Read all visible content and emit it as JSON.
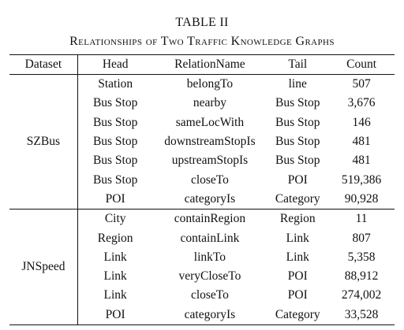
{
  "caption": {
    "number": "TABLE II",
    "title": "Relationships of Two Traffic Knowledge Graphs"
  },
  "table": {
    "headers": [
      "Dataset",
      "Head",
      "RelationName",
      "Tail",
      "Count"
    ],
    "groups": [
      {
        "dataset": "SZBus",
        "rows": [
          [
            "Station",
            "belongTo",
            "line",
            "507"
          ],
          [
            "Bus Stop",
            "nearby",
            "Bus Stop",
            "3,676"
          ],
          [
            "Bus Stop",
            "sameLocWith",
            "Bus Stop",
            "146"
          ],
          [
            "Bus Stop",
            "downstreamStopIs",
            "Bus Stop",
            "481"
          ],
          [
            "Bus Stop",
            "upstreamStopIs",
            "Bus Stop",
            "481"
          ],
          [
            "Bus Stop",
            "closeTo",
            "POI",
            "519,386"
          ],
          [
            "POI",
            "categoryIs",
            "Category",
            "90,928"
          ]
        ]
      },
      {
        "dataset": "JNSpeed",
        "rows": [
          [
            "City",
            "containRegion",
            "Region",
            "11"
          ],
          [
            "Region",
            "containLink",
            "Link",
            "807"
          ],
          [
            "Link",
            "linkTo",
            "Link",
            "5,358"
          ],
          [
            "Link",
            "veryCloseTo",
            "POI",
            "88,912"
          ],
          [
            "Link",
            "closeTo",
            "POI",
            "274,002"
          ],
          [
            "POI",
            "categoryIs",
            "Category",
            "33,528"
          ]
        ]
      }
    ]
  }
}
